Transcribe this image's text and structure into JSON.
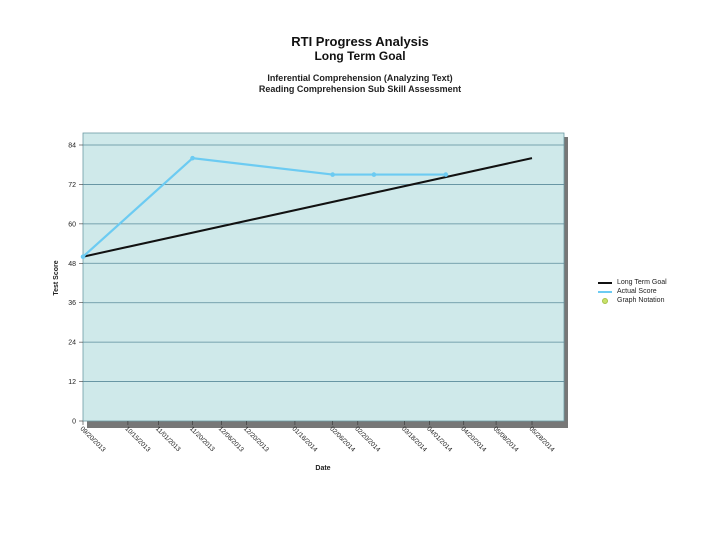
{
  "titles": {
    "main": "RTI Progress Analysis",
    "sub": "Long Term Goal",
    "student": "",
    "skill": "Inferential Comprehension (Analyzing Text)",
    "assessment": "Reading Comprehension Sub Skill Assessment"
  },
  "legend": {
    "long_term_goal": "Long Term Goal",
    "actual_score": "Actual Score",
    "graph_notation": "Graph Notation"
  },
  "colors": {
    "plot_bg": "#cfe9ea",
    "gridline": "#5a8a9a",
    "goal_line": "#111111",
    "actual_line": "#6ccbf2",
    "notation": "#c9e26a"
  },
  "chart_data": {
    "type": "line",
    "xlabel": "Date",
    "ylabel": "Test Score",
    "ylim": [
      0,
      84
    ],
    "yticks": [
      0,
      12,
      24,
      36,
      48,
      60,
      72,
      84
    ],
    "categories": [
      "09/20/2013",
      "10/15/2013",
      "11/01/2013",
      "11/20/2013",
      "12/06/2013",
      "12/20/2013",
      "01/16/2014",
      "02/06/2014",
      "02/20/2014",
      "03/18/2014",
      "04/01/2014",
      "04/20/2014",
      "05/08/2014",
      "05/28/2014"
    ],
    "series": [
      {
        "name": "Long Term Goal",
        "points": [
          {
            "x": "09/20/2013",
            "y": 50
          },
          {
            "x": "05/28/2014",
            "y": 80
          }
        ]
      },
      {
        "name": "Actual Score",
        "points": [
          {
            "x": "09/20/2013",
            "y": 50
          },
          {
            "x": "11/20/2013",
            "y": 80
          },
          {
            "x": "02/06/2014",
            "y": 75
          },
          {
            "x": "03/01/2014",
            "y": 75
          },
          {
            "x": "04/10/2014",
            "y": 75
          }
        ]
      }
    ],
    "legend_position": "right",
    "grid": true
  }
}
